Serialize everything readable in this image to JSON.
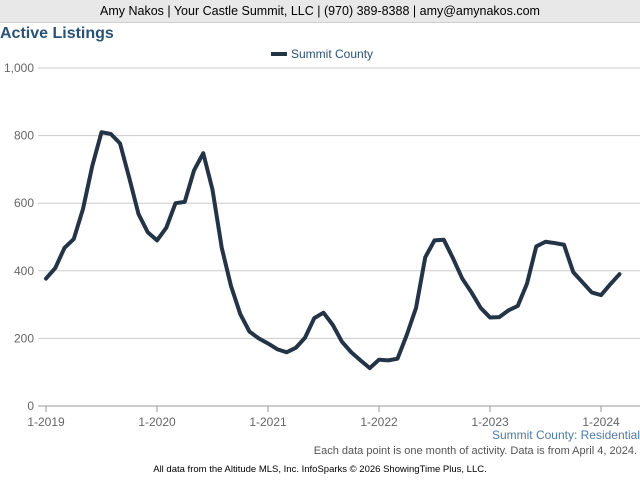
{
  "header": {
    "contact": "Amy Nakos | Your Castle Summit, LLC | (970) 389-8388 | amy@amynakos.com"
  },
  "title": "Active Listings",
  "legend": {
    "label": "Summit County"
  },
  "source_label": "Summit County: Residential",
  "note": "Each data point is one month of activity. Data is from April 4, 2024.",
  "footer": "All data from the Altitude MLS, Inc. InfoSparks © 2026 ShowingTime Plus, LLC.",
  "colors": {
    "series": "#243447",
    "grid": "#cccccc",
    "title": "#2a5276",
    "source": "#4f7aa6"
  },
  "chart_data": {
    "type": "line",
    "title": "Active Listings",
    "xlabel": "",
    "ylabel": "",
    "ylim": [
      0,
      1000
    ],
    "yticks": [
      0,
      200,
      400,
      600,
      800,
      1000
    ],
    "ytick_labels": [
      "0",
      "200",
      "400",
      "600",
      "800",
      "1,000"
    ],
    "xticks": [
      "1-2019",
      "1-2020",
      "1-2021",
      "1-2022",
      "1-2023",
      "1-2024"
    ],
    "xtick_index": [
      0,
      12,
      24,
      36,
      48,
      60
    ],
    "legend_position": "top-center",
    "grid": true,
    "series": [
      {
        "name": "Summit County",
        "x": [
          "2019-01",
          "2019-02",
          "2019-03",
          "2019-04",
          "2019-05",
          "2019-06",
          "2019-07",
          "2019-08",
          "2019-09",
          "2019-10",
          "2019-11",
          "2019-12",
          "2020-01",
          "2020-02",
          "2020-03",
          "2020-04",
          "2020-05",
          "2020-06",
          "2020-07",
          "2020-08",
          "2020-09",
          "2020-10",
          "2020-11",
          "2020-12",
          "2021-01",
          "2021-02",
          "2021-03",
          "2021-04",
          "2021-05",
          "2021-06",
          "2021-07",
          "2021-08",
          "2021-09",
          "2021-10",
          "2021-11",
          "2021-12",
          "2022-01",
          "2022-02",
          "2022-03",
          "2022-04",
          "2022-05",
          "2022-06",
          "2022-07",
          "2022-08",
          "2022-09",
          "2022-10",
          "2022-11",
          "2022-12",
          "2023-01",
          "2023-02",
          "2023-03",
          "2023-04",
          "2023-05",
          "2023-06",
          "2023-07",
          "2023-08",
          "2023-09",
          "2023-10",
          "2023-11",
          "2023-12",
          "2024-01",
          "2024-02",
          "2024-03"
        ],
        "values": [
          377,
          408,
          468,
          494,
          583,
          710,
          810,
          805,
          777,
          675,
          568,
          514,
          490,
          527,
          600,
          604,
          697,
          748,
          640,
          468,
          355,
          272,
          220,
          200,
          185,
          168,
          159,
          172,
          202,
          260,
          276,
          240,
          190,
          159,
          135,
          112,
          137,
          135,
          140,
          210,
          290,
          440,
          490,
          492,
          437,
          377,
          336,
          290,
          262,
          263,
          283,
          296,
          362,
          472,
          486,
          482,
          477,
          396,
          366,
          336,
          328,
          360,
          390
        ]
      }
    ]
  }
}
